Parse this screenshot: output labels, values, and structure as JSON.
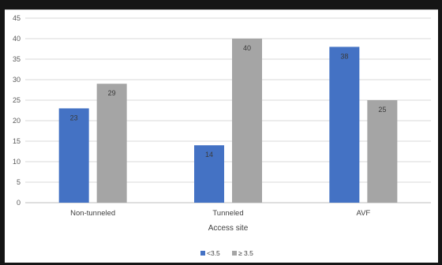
{
  "chart_data": {
    "type": "bar",
    "categories": [
      "Non-tunneled",
      "Tunneled",
      "AVF"
    ],
    "series": [
      {
        "name": "<3.5",
        "values": [
          23,
          14,
          38
        ],
        "color": "#4472C4"
      },
      {
        "name": "≥ 3.5",
        "values": [
          29,
          40,
          25
        ],
        "color": "#A5A5A5"
      }
    ],
    "xlabel": "Access site",
    "ylabel": "",
    "ylim": [
      0,
      45
    ],
    "yticks": [
      0,
      5,
      10,
      15,
      20,
      25,
      30,
      35,
      40,
      45
    ],
    "grid": true,
    "data_labels": true,
    "legend_position": "bottom"
  }
}
